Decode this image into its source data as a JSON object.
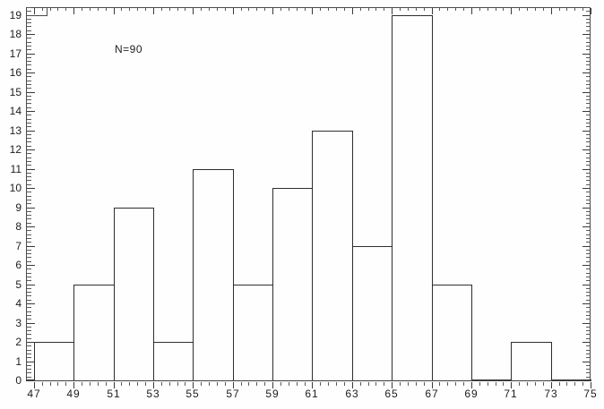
{
  "chart_data": {
    "type": "bar",
    "subtype": "histogram",
    "title": "",
    "xlabel": "",
    "ylabel": "",
    "annotation": "N=90",
    "sample_size": 90,
    "bin_width": 2,
    "bin_edges": [
      47,
      49,
      51,
      53,
      55,
      57,
      59,
      61,
      63,
      65,
      67,
      69,
      71,
      73,
      75
    ],
    "categories": [
      "47-49",
      "49-51",
      "51-53",
      "53-55",
      "55-57",
      "57-59",
      "59-61",
      "61-63",
      "63-65",
      "65-67",
      "67-69",
      "69-71",
      "71-73",
      "73-75"
    ],
    "values": [
      2,
      5,
      9,
      2,
      11,
      5,
      10,
      13,
      7,
      19,
      5,
      0,
      2,
      0
    ],
    "x_tick_values": [
      47,
      49,
      51,
      53,
      55,
      57,
      59,
      61,
      63,
      65,
      67,
      69,
      71,
      73,
      75
    ],
    "x_tick_labels": [
      "47",
      "49",
      "51",
      "53",
      "55",
      "57",
      "59",
      "61",
      "63",
      "65",
      "67",
      "69",
      "71",
      "73",
      "75"
    ],
    "y_tick_values": [
      0,
      1,
      2,
      3,
      4,
      5,
      6,
      7,
      8,
      9,
      10,
      11,
      12,
      13,
      14,
      15,
      16,
      17,
      18,
      19
    ],
    "y_tick_labels": [
      "0",
      "1",
      "2",
      "3",
      "4",
      "5",
      "6",
      "7",
      "8",
      "9",
      "10",
      "11",
      "12",
      "13",
      "14",
      "15",
      "16",
      "17",
      "18",
      "19"
    ],
    "xlim": [
      46.6,
      75.0
    ],
    "ylim": [
      0,
      19.4
    ],
    "x_minor_step": 0.4,
    "y_minor_step": 0.2,
    "grid": false,
    "legend": "none",
    "ticks_on_all_sides": true,
    "colors": {
      "background": "#fefefe",
      "bar_fill": "#fefefe",
      "bar_border": "#2e2e2e",
      "axis": "#3d3d3d",
      "text": "#1c1c1c"
    }
  }
}
